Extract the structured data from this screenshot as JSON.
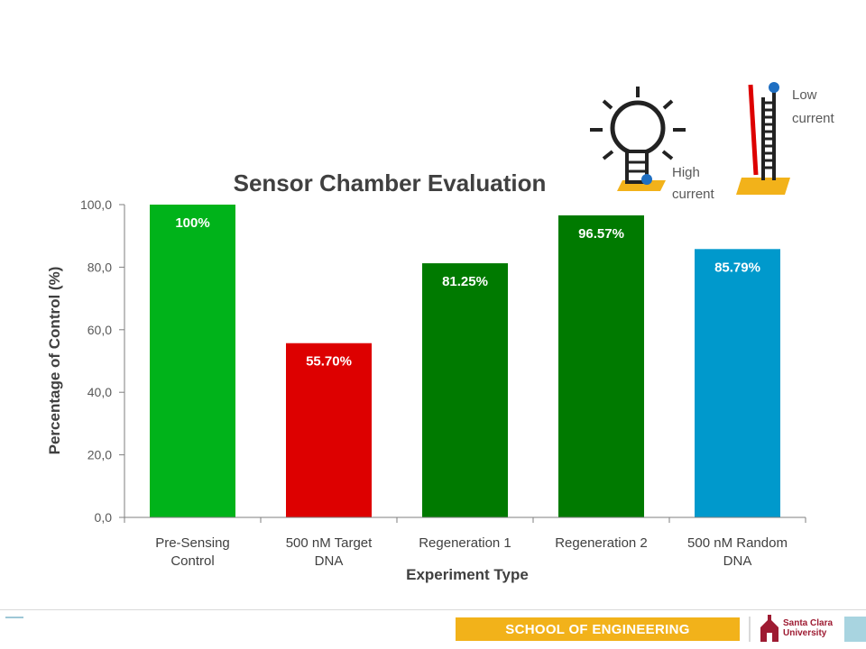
{
  "chart_data": {
    "type": "bar",
    "title": "Sensor Chamber Evaluation",
    "xlabel": "Experiment Type",
    "ylabel": "Percentage of Control (%)",
    "categories": [
      [
        "Pre-Sensing",
        "Control"
      ],
      [
        "500 nM Target",
        "DNA"
      ],
      [
        "Regeneration 1"
      ],
      [
        "Regeneration 2"
      ],
      [
        "500 nM Random",
        "DNA"
      ]
    ],
    "values": [
      100,
      55.7,
      81.25,
      96.57,
      85.79
    ],
    "data_labels": [
      "100%",
      "55.70%",
      "81.25%",
      "96.57%",
      "85.79%"
    ],
    "bar_colors": [
      "#00b31a",
      "#dd0000",
      "#007a00",
      "#007a00",
      "#0099cc"
    ],
    "ylim": [
      0,
      100
    ],
    "yticks": [
      0,
      20,
      40,
      60,
      80,
      100
    ],
    "ytick_labels": [
      "0,0",
      "20,0",
      "40,0",
      "60,0",
      "80,0",
      "100,0"
    ],
    "grid": false,
    "legend": "none"
  },
  "annotations": {
    "high_current": [
      "High",
      "current"
    ],
    "low_current": [
      "Low",
      "current"
    ]
  },
  "footer": {
    "school_label": "SCHOOL OF ENGINEERING",
    "university_name": [
      "Santa Clara",
      "University"
    ],
    "accent_color": "#f2b21a"
  }
}
